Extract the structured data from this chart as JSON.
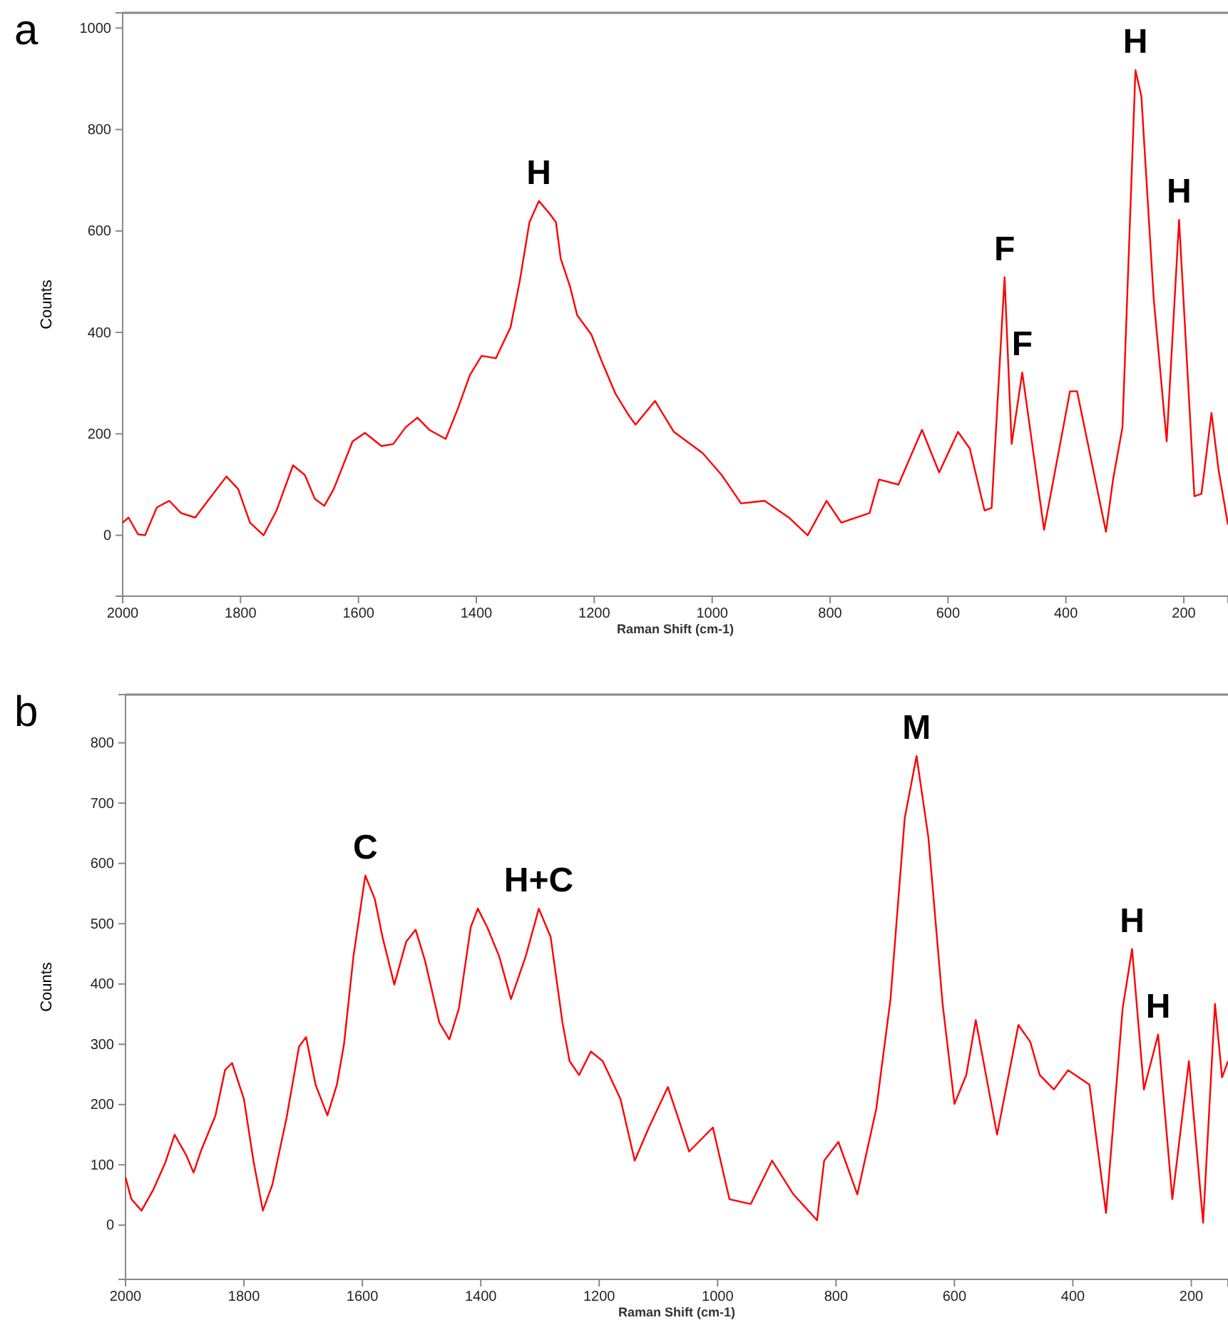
{
  "chart_data": [
    {
      "type": "line",
      "title": "a",
      "xlabel": "Raman Shift (cm-1)",
      "ylabel": "Counts",
      "xlim": [
        2000,
        125
      ],
      "xticks": [
        2000,
        1800,
        1600,
        1400,
        1200,
        1000,
        800,
        600,
        400,
        200
      ],
      "ylim": [
        -120,
        1030
      ],
      "yticks": [
        0,
        200,
        400,
        600,
        800,
        1000
      ],
      "grid": false,
      "marker": "none",
      "line_style": "solid",
      "series": [
        {
          "color": "#ff0000",
          "x": [
            2000,
            1990,
            1974,
            1962,
            1942,
            1921,
            1901,
            1877,
            1853,
            1824,
            1804,
            1784,
            1761,
            1739,
            1711,
            1691,
            1674,
            1658,
            1642,
            1610,
            1589,
            1561,
            1541,
            1520,
            1500,
            1480,
            1452,
            1431,
            1411,
            1391,
            1367,
            1342,
            1326,
            1310,
            1294,
            1277,
            1265,
            1257,
            1241,
            1229,
            1205,
            1188,
            1164,
            1144,
            1130,
            1097,
            1065,
            1016,
            984,
            951,
            911,
            870,
            838,
            806,
            781,
            733,
            717,
            684,
            644,
            615,
            583,
            563,
            538,
            526,
            504,
            492,
            474,
            437,
            393,
            381,
            332,
            320,
            304,
            282,
            272,
            251,
            229,
            208,
            182,
            170,
            153,
            141,
            125
          ],
          "values": [
            25,
            35,
            2,
            0,
            55,
            68,
            44,
            35,
            72,
            116,
            91,
            25,
            0,
            49,
            138,
            119,
            72,
            58,
            91,
            185,
            202,
            176,
            180,
            213,
            232,
            208,
            190,
            251,
            316,
            354,
            349,
            410,
            504,
            617,
            659,
            636,
            617,
            546,
            490,
            434,
            396,
            345,
            279,
            241,
            218,
            265,
            204,
            162,
            119,
            63,
            68,
            35,
            0,
            68,
            25,
            44,
            110,
            100,
            208,
            124,
            204,
            171,
            49,
            54,
            509,
            180,
            321,
            11,
            284,
            284,
            7,
            110,
            213,
            917,
            866,
            466,
            185,
            622,
            77,
            82,
            241,
            129,
            21
          ]
        }
      ],
      "annotations": [
        {
          "text": "H",
          "x": 1294,
          "y": 659
        },
        {
          "text": "F",
          "x": 504,
          "y": 509
        },
        {
          "text": "F",
          "x": 474,
          "y": 321
        },
        {
          "text": "H",
          "x": 282,
          "y": 917
        },
        {
          "text": "H",
          "x": 208,
          "y": 622
        }
      ]
    },
    {
      "type": "line",
      "title": "b",
      "xlabel": "Raman Shift (cm-1)",
      "ylabel": "Counts",
      "xlim": [
        2000,
        138
      ],
      "xticks": [
        2000,
        1800,
        1600,
        1400,
        1200,
        1000,
        800,
        600,
        400,
        200
      ],
      "ylim": [
        -90,
        880
      ],
      "yticks": [
        0,
        100,
        200,
        300,
        400,
        500,
        600,
        700,
        800
      ],
      "grid": false,
      "marker": "none",
      "line_style": "solid",
      "series": [
        {
          "color": "#ff0000",
          "x": [
            2000,
            1990,
            1973,
            1953,
            1933,
            1917,
            1897,
            1885,
            1873,
            1848,
            1832,
            1820,
            1800,
            1784,
            1768,
            1752,
            1728,
            1707,
            1695,
            1679,
            1659,
            1643,
            1631,
            1615,
            1595,
            1579,
            1566,
            1546,
            1526,
            1510,
            1494,
            1470,
            1453,
            1437,
            1417,
            1405,
            1389,
            1369,
            1349,
            1324,
            1302,
            1282,
            1262,
            1250,
            1234,
            1214,
            1194,
            1164,
            1140,
            1116,
            1084,
            1064,
            1048,
            1008,
            980,
            944,
            908,
            872,
            832,
            820,
            796,
            764,
            732,
            708,
            684,
            664,
            644,
            620,
            600,
            580,
            564,
            528,
            492,
            472,
            456,
            432,
            408,
            372,
            344,
            316,
            300,
            280,
            256,
            232,
            204,
            180,
            160,
            148,
            138
          ],
          "values": [
            79,
            43,
            24,
            59,
            103,
            150,
            115,
            87,
            122,
            182,
            257,
            269,
            209,
            107,
            24,
            67,
            178,
            296,
            312,
            233,
            182,
            233,
            300,
            446,
            580,
            541,
            478,
            399,
            470,
            490,
            438,
            336,
            308,
            359,
            494,
            525,
            494,
            446,
            375,
            446,
            525,
            478,
            336,
            272,
            249,
            288,
            272,
            209,
            107,
            162,
            229,
            170,
            122,
            162,
            43,
            35,
            107,
            51,
            8,
            107,
            138,
            51,
            193,
            375,
            675,
            778,
            643,
            367,
            201,
            249,
            340,
            150,
            332,
            304,
            249,
            225,
            257,
            233,
            20,
            359,
            458,
            225,
            316,
            43,
            272,
            4,
            367,
            245,
            272
          ]
        }
      ],
      "annotations": [
        {
          "text": "C",
          "x": 1595,
          "y": 580
        },
        {
          "text": "H+C",
          "x": 1302,
          "y": 525
        },
        {
          "text": "M",
          "x": 664,
          "y": 778
        },
        {
          "text": "H",
          "x": 300,
          "y": 458
        },
        {
          "text": "H",
          "x": 256,
          "y": 316
        }
      ]
    }
  ]
}
